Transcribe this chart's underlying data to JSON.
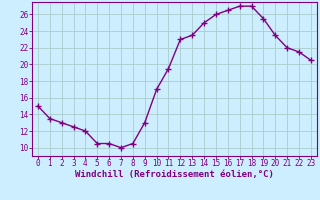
{
  "x": [
    0,
    1,
    2,
    3,
    4,
    5,
    6,
    7,
    8,
    9,
    10,
    11,
    12,
    13,
    14,
    15,
    16,
    17,
    18,
    19,
    20,
    21,
    22,
    23
  ],
  "y": [
    15.0,
    13.5,
    13.0,
    12.5,
    12.0,
    10.5,
    10.5,
    10.0,
    10.5,
    13.0,
    17.0,
    19.5,
    23.0,
    23.5,
    25.0,
    26.0,
    26.5,
    27.0,
    27.0,
    25.5,
    23.5,
    22.0,
    21.5,
    20.5
  ],
  "line_color": "#800080",
  "marker": "+",
  "markersize": 4,
  "linewidth": 1.0,
  "markeredgewidth": 1.0,
  "background_color": "#cceeff",
  "grid_color": "#aacccc",
  "spine_color": "#800080",
  "xlabel": "Windchill (Refroidissement éolien,°C)",
  "xlim": [
    -0.5,
    23.5
  ],
  "ylim": [
    9.0,
    27.5
  ],
  "yticks": [
    10,
    12,
    14,
    16,
    18,
    20,
    22,
    24,
    26
  ],
  "xticks": [
    0,
    1,
    2,
    3,
    4,
    5,
    6,
    7,
    8,
    9,
    10,
    11,
    12,
    13,
    14,
    15,
    16,
    17,
    18,
    19,
    20,
    21,
    22,
    23
  ],
  "tick_color": "#800080",
  "label_color": "#800080",
  "label_fontsize": 6.5,
  "tick_fontsize": 5.5
}
